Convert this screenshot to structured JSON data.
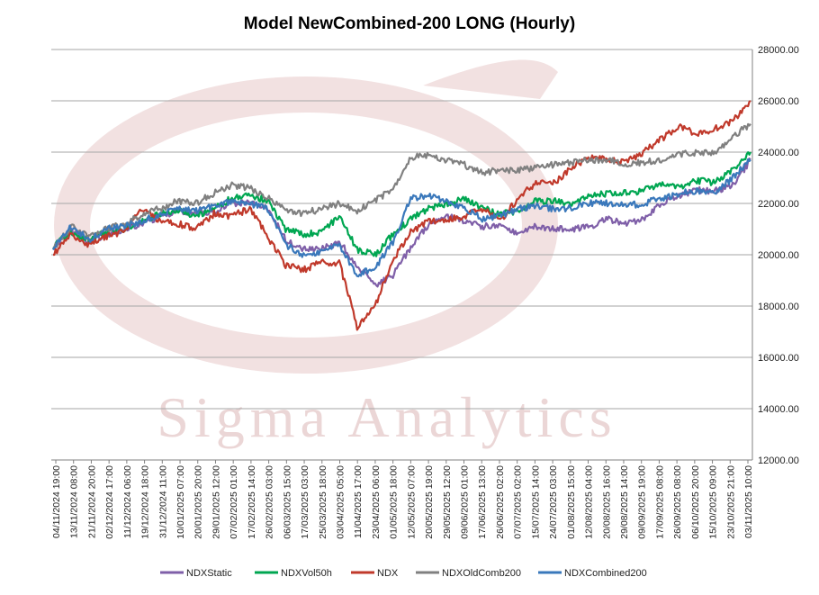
{
  "chart_data": {
    "type": "line",
    "title": "Model NewCombined-200 LONG (Hourly)",
    "watermark": "Sigma Analytics",
    "xlabel": "",
    "ylabel": "",
    "ylim": [
      12000,
      28000
    ],
    "y_ticks": [
      "12000.00",
      "14000.00",
      "16000.00",
      "18000.00",
      "20000.00",
      "22000.00",
      "24000.00",
      "26000.00",
      "28000.00"
    ],
    "x_tick_labels": [
      "04/11/2024 19:00",
      "13/11/2024 08:00",
      "21/11/2024 20:00",
      "02/12/2024 17:00",
      "11/12/2024 06:00",
      "19/12/2024 18:00",
      "31/12/2024 11:00",
      "10/01/2025 07:00",
      "20/01/2025 20:00",
      "29/01/2025 12:00",
      "07/02/2025 01:00",
      "17/02/2025 14:00",
      "26/02/2025 03:00",
      "06/03/2025 15:00",
      "17/03/2025 03:00",
      "25/03/2025 18:00",
      "03/04/2025 05:00",
      "11/04/2025 17:00",
      "23/04/2025 06:00",
      "01/05/2025 18:00",
      "12/05/2025 07:00",
      "20/05/2025 19:00",
      "29/05/2025 12:00",
      "09/06/2025 01:00",
      "17/06/2025 13:00",
      "26/06/2025 02:00",
      "07/07/2025 02:00",
      "15/07/2025 14:00",
      "24/07/2025 03:00",
      "01/08/2025 15:00",
      "12/08/2025 04:00",
      "20/08/2025 16:00",
      "29/08/2025 14:00",
      "09/09/2025 19:00",
      "17/09/2025 08:00",
      "26/09/2025 08:00",
      "06/10/2025 20:00",
      "15/10/2025 09:00",
      "23/10/2025 21:00",
      "03/11/2025 10:00"
    ],
    "grid": true,
    "legend_position": "bottom",
    "series": [
      {
        "name": "NDXStatic",
        "color": "#7f5fa8",
        "values": [
          20200,
          20900,
          20500,
          20800,
          21000,
          21200,
          21500,
          21700,
          21600,
          21700,
          22000,
          22000,
          21800,
          20600,
          20200,
          20200,
          20500,
          19600,
          18800,
          19200,
          20300,
          21200,
          21500,
          21300,
          21100,
          21200,
          20800,
          21100,
          21000,
          21000,
          21100,
          21400,
          21200,
          21400,
          22000,
          22300,
          22500,
          22500,
          22700,
          23700
        ]
      },
      {
        "name": "NDXVol50h",
        "color": "#00a651",
        "values": [
          20300,
          20900,
          20600,
          20900,
          21000,
          21300,
          21600,
          21700,
          21500,
          21800,
          22200,
          22300,
          22100,
          21000,
          20800,
          20900,
          21500,
          20200,
          20000,
          20800,
          21400,
          21800,
          22000,
          22200,
          21800,
          21600,
          21700,
          22100,
          22100,
          22000,
          22300,
          22400,
          22400,
          22500,
          22800,
          22600,
          22900,
          22800,
          23300,
          24000
        ]
      },
      {
        "name": "NDX",
        "color": "#c0392b",
        "values": [
          20000,
          20800,
          20400,
          20700,
          20900,
          21800,
          21300,
          21200,
          21000,
          21600,
          21500,
          21800,
          20700,
          19600,
          19400,
          19700,
          19700,
          17200,
          18000,
          19800,
          20900,
          21300,
          21400,
          21500,
          21800,
          21300,
          22200,
          22800,
          22800,
          23400,
          23800,
          23700,
          23600,
          24000,
          24500,
          25000,
          24700,
          24900,
          25200,
          26000
        ]
      },
      {
        "name": "NDXOldComb200",
        "color": "#808080",
        "values": [
          20200,
          21100,
          20700,
          21000,
          21200,
          21600,
          21800,
          22100,
          22000,
          22400,
          22700,
          22600,
          22200,
          21800,
          21600,
          21800,
          22000,
          21700,
          22100,
          22600,
          23800,
          23900,
          23700,
          23500,
          23200,
          23300,
          23300,
          23400,
          23500,
          23600,
          23700,
          23700,
          23500,
          23600,
          23700,
          23900,
          24000,
          24000,
          24600,
          25100
        ]
      },
      {
        "name": "NDXCombined200",
        "color": "#3a78bb",
        "values": [
          20200,
          21100,
          20600,
          21000,
          21100,
          21300,
          21600,
          21800,
          21700,
          21900,
          22100,
          22000,
          21800,
          20400,
          20000,
          20100,
          20400,
          19200,
          19500,
          20500,
          22200,
          22300,
          22100,
          21800,
          21400,
          21500,
          21800,
          21900,
          21800,
          21800,
          22000,
          22000,
          21900,
          22000,
          22200,
          22400,
          22500,
          22400,
          23000,
          23700
        ]
      }
    ]
  }
}
